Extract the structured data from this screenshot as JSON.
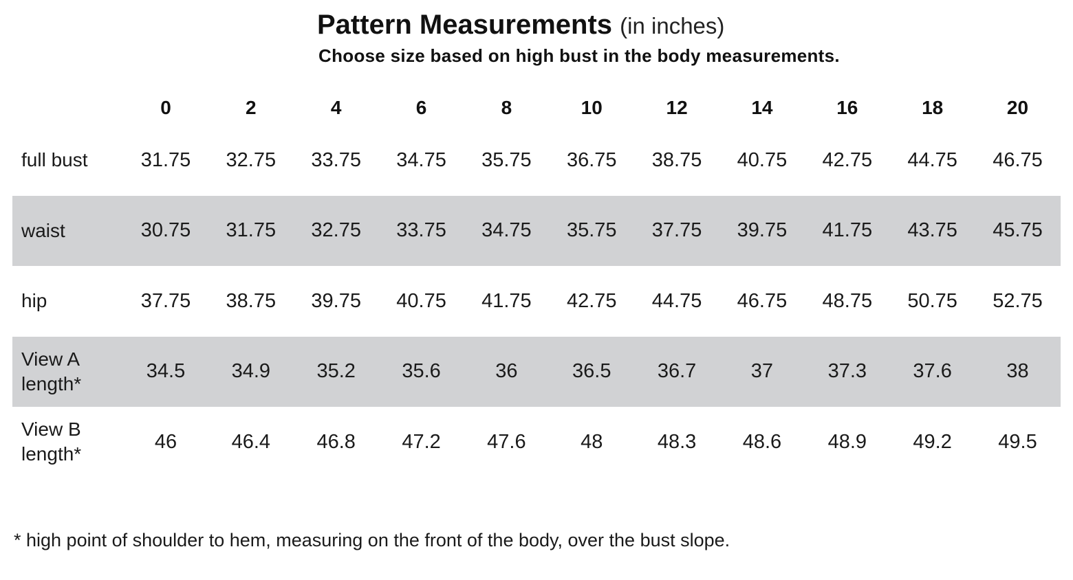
{
  "title": {
    "main": "Pattern Measurements",
    "unit": "(in inches)",
    "subtitle": "Choose size based on high bust in the body measurements."
  },
  "table": {
    "sizes": [
      "0",
      "2",
      "4",
      "6",
      "8",
      "10",
      "12",
      "14",
      "16",
      "18",
      "20"
    ],
    "rows": [
      {
        "label": "full bust",
        "shaded": false,
        "values": [
          "31.75",
          "32.75",
          "33.75",
          "34.75",
          "35.75",
          "36.75",
          "38.75",
          "40.75",
          "42.75",
          "44.75",
          "46.75"
        ]
      },
      {
        "label": "waist",
        "shaded": true,
        "values": [
          "30.75",
          "31.75",
          "32.75",
          "33.75",
          "34.75",
          "35.75",
          "37.75",
          "39.75",
          "41.75",
          "43.75",
          "45.75"
        ]
      },
      {
        "label": "hip",
        "shaded": false,
        "values": [
          "37.75",
          "38.75",
          "39.75",
          "40.75",
          "41.75",
          "42.75",
          "44.75",
          "46.75",
          "48.75",
          "50.75",
          "52.75"
        ]
      },
      {
        "label": "View A length*",
        "shaded": true,
        "values": [
          "34.5",
          "34.9",
          "35.2",
          "35.6",
          "36",
          "36.5",
          "36.7",
          "37",
          "37.3",
          "37.6",
          "38"
        ]
      },
      {
        "label": "View B length*",
        "shaded": false,
        "values": [
          "46",
          "46.4",
          "46.8",
          "47.2",
          "47.6",
          "48",
          "48.3",
          "48.6",
          "48.9",
          "49.2",
          "49.5"
        ]
      }
    ]
  },
  "footnote": "* high point of shoulder to hem, measuring on the front of the body, over the bust slope.",
  "colors": {
    "shaded_row": "#d1d2d4",
    "text": "#1a1a1a"
  }
}
